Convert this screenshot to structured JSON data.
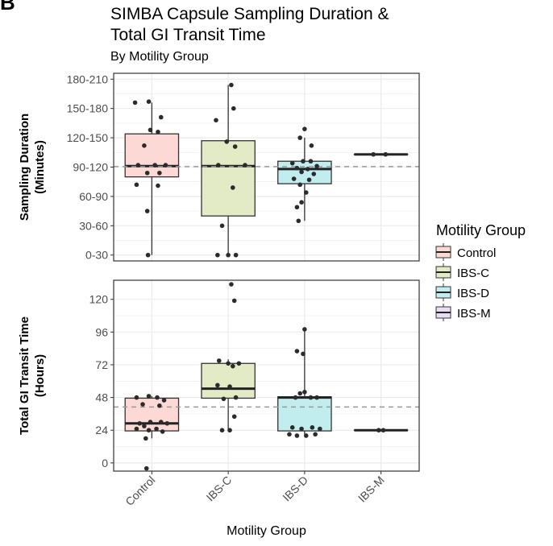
{
  "panel_letter": "B",
  "header": {
    "title_line1": "SIMBA Capsule Sampling Duration &",
    "title_line2": "Total GI Transit Time",
    "subtitle": "By Motility Group"
  },
  "colors": {
    "Control": "#fdd9d5",
    "IBS-C": "#e2ebc6",
    "IBS-D": "#c1edee",
    "IBS-M": "#eadcf6",
    "grid": "#ebebeb",
    "reference_line": "#999999",
    "points": "#2b2b2b"
  },
  "chart_data": [
    {
      "type": "box",
      "panel": "top",
      "ylabel_line1": "Sampling Duration",
      "ylabel_line2": "(Minutes)",
      "categories": [
        "Control",
        "IBS-C",
        "IBS-D",
        "IBS-M"
      ],
      "yticks": [
        0,
        30,
        60,
        90,
        120,
        150,
        180
      ],
      "ytick_labels": [
        "0-30",
        "30-60",
        "60-90",
        "90-120",
        "120-150",
        "150-180",
        "180-210"
      ],
      "ylim": [
        -6,
        186
      ],
      "reference_line": 90.5,
      "boxes": [
        {
          "category": "Control",
          "q1": 80,
          "median": 91,
          "q3": 124,
          "whisker_low": 0,
          "whisker_high": 156
        },
        {
          "category": "IBS-C",
          "q1": 40,
          "median": 91,
          "q3": 117,
          "whisker_low": 0,
          "whisker_high": 174
        },
        {
          "category": "IBS-D",
          "q1": 73,
          "median": 88,
          "q3": 96,
          "whisker_low": 35,
          "whisker_high": 120
        },
        {
          "category": "IBS-M",
          "q1": 103,
          "median": 103,
          "q3": 103,
          "whisker_low": 103,
          "whisker_high": 103
        }
      ],
      "points": [
        {
          "category": "Control",
          "offset": -0.22,
          "y": 156
        },
        {
          "category": "Control",
          "offset": -0.04,
          "y": 157
        },
        {
          "category": "Control",
          "offset": 0.12,
          "y": 141
        },
        {
          "category": "Control",
          "offset": -0.02,
          "y": 128
        },
        {
          "category": "Control",
          "offset": 0.08,
          "y": 126
        },
        {
          "category": "Control",
          "offset": -0.1,
          "y": 112
        },
        {
          "category": "Control",
          "offset": -0.18,
          "y": 92
        },
        {
          "category": "Control",
          "offset": 0.04,
          "y": 92
        },
        {
          "category": "Control",
          "offset": 0.18,
          "y": 92
        },
        {
          "category": "Control",
          "offset": -0.06,
          "y": 84
        },
        {
          "category": "Control",
          "offset": 0.1,
          "y": 84
        },
        {
          "category": "Control",
          "offset": -0.2,
          "y": 72
        },
        {
          "category": "Control",
          "offset": 0.08,
          "y": 71
        },
        {
          "category": "Control",
          "offset": -0.06,
          "y": 45
        },
        {
          "category": "Control",
          "offset": -0.05,
          "y": 0
        },
        {
          "category": "IBS-C",
          "offset": 0.04,
          "y": 174
        },
        {
          "category": "IBS-C",
          "offset": 0.07,
          "y": 150
        },
        {
          "category": "IBS-C",
          "offset": -0.16,
          "y": 138
        },
        {
          "category": "IBS-C",
          "offset": -0.02,
          "y": 116
        },
        {
          "category": "IBS-C",
          "offset": 0.09,
          "y": 111
        },
        {
          "category": "IBS-C",
          "offset": -0.13,
          "y": 92
        },
        {
          "category": "IBS-C",
          "offset": 0.22,
          "y": 92
        },
        {
          "category": "IBS-C",
          "offset": 0.06,
          "y": 69
        },
        {
          "category": "IBS-C",
          "offset": -0.08,
          "y": 30
        },
        {
          "category": "IBS-C",
          "offset": -0.14,
          "y": 0
        },
        {
          "category": "IBS-C",
          "offset": 0.0,
          "y": 0
        },
        {
          "category": "IBS-C",
          "offset": 0.1,
          "y": 0
        },
        {
          "category": "IBS-D",
          "offset": 0.0,
          "y": 129
        },
        {
          "category": "IBS-D",
          "offset": -0.06,
          "y": 120
        },
        {
          "category": "IBS-D",
          "offset": 0.09,
          "y": 112
        },
        {
          "category": "IBS-D",
          "offset": -0.16,
          "y": 94
        },
        {
          "category": "IBS-D",
          "offset": -0.02,
          "y": 96
        },
        {
          "category": "IBS-D",
          "offset": 0.08,
          "y": 96
        },
        {
          "category": "IBS-D",
          "offset": 0.16,
          "y": 91
        },
        {
          "category": "IBS-D",
          "offset": -0.1,
          "y": 89
        },
        {
          "category": "IBS-D",
          "offset": 0.04,
          "y": 88
        },
        {
          "category": "IBS-D",
          "offset": -0.04,
          "y": 85
        },
        {
          "category": "IBS-D",
          "offset": 0.12,
          "y": 83
        },
        {
          "category": "IBS-D",
          "offset": -0.14,
          "y": 78
        },
        {
          "category": "IBS-D",
          "offset": 0.06,
          "y": 77
        },
        {
          "category": "IBS-D",
          "offset": -0.06,
          "y": 72
        },
        {
          "category": "IBS-D",
          "offset": 0.02,
          "y": 64
        },
        {
          "category": "IBS-D",
          "offset": -0.1,
          "y": 49
        },
        {
          "category": "IBS-D",
          "offset": -0.04,
          "y": 54
        },
        {
          "category": "IBS-D",
          "offset": -0.08,
          "y": 35
        },
        {
          "category": "IBS-M",
          "offset": -0.1,
          "y": 103
        },
        {
          "category": "IBS-M",
          "offset": 0.06,
          "y": 103
        }
      ]
    },
    {
      "type": "box",
      "panel": "bottom",
      "ylabel_line1": "Total GI Transit Time",
      "ylabel_line2": "(Hours)",
      "categories": [
        "Control",
        "IBS-C",
        "IBS-D",
        "IBS-M"
      ],
      "yticks": [
        0,
        24,
        48,
        72,
        96,
        120
      ],
      "ytick_labels": [
        "0",
        "24",
        "48",
        "72",
        "96",
        "120"
      ],
      "ylim": [
        -6,
        134
      ],
      "reference_line": 41,
      "boxes": [
        {
          "category": "Control",
          "q1": 23.5,
          "median": 29,
          "q3": 47.5,
          "whisker_low": 18,
          "whisker_high": 49
        },
        {
          "category": "IBS-C",
          "q1": 47.5,
          "median": 54.5,
          "q3": 73,
          "whisker_low": 24,
          "whisker_high": 76
        },
        {
          "category": "IBS-D",
          "q1": 23.5,
          "median": 48,
          "q3": 48.5,
          "whisker_low": 21,
          "whisker_high": 97
        },
        {
          "category": "IBS-M",
          "q1": 24,
          "median": 24,
          "q3": 24,
          "whisker_low": 24,
          "whisker_high": 24
        }
      ],
      "points": [
        {
          "category": "Control",
          "offset": -0.2,
          "y": 48
        },
        {
          "category": "Control",
          "offset": -0.04,
          "y": 49
        },
        {
          "category": "Control",
          "offset": 0.07,
          "y": 48
        },
        {
          "category": "Control",
          "offset": 0.16,
          "y": 46
        },
        {
          "category": "Control",
          "offset": -0.12,
          "y": 43
        },
        {
          "category": "Control",
          "offset": 0.1,
          "y": 42
        },
        {
          "category": "Control",
          "offset": -0.16,
          "y": 29
        },
        {
          "category": "Control",
          "offset": -0.02,
          "y": 30
        },
        {
          "category": "Control",
          "offset": 0.12,
          "y": 30
        },
        {
          "category": "Control",
          "offset": 0.2,
          "y": 29
        },
        {
          "category": "Control",
          "offset": -0.1,
          "y": 27
        },
        {
          "category": "Control",
          "offset": -0.2,
          "y": 25
        },
        {
          "category": "Control",
          "offset": 0.06,
          "y": 25
        },
        {
          "category": "Control",
          "offset": -0.04,
          "y": 24
        },
        {
          "category": "Control",
          "offset": 0.14,
          "y": 23
        },
        {
          "category": "Control",
          "offset": -0.08,
          "y": 18
        },
        {
          "category": "Control",
          "offset": -0.07,
          "y": -4
        },
        {
          "category": "IBS-C",
          "offset": 0.04,
          "y": 131
        },
        {
          "category": "IBS-C",
          "offset": 0.08,
          "y": 119
        },
        {
          "category": "IBS-C",
          "offset": -0.12,
          "y": 75
        },
        {
          "category": "IBS-C",
          "offset": 0.0,
          "y": 73
        },
        {
          "category": "IBS-C",
          "offset": 0.14,
          "y": 73
        },
        {
          "category": "IBS-C",
          "offset": 0.06,
          "y": 71
        },
        {
          "category": "IBS-C",
          "offset": -0.14,
          "y": 57
        },
        {
          "category": "IBS-C",
          "offset": 0.02,
          "y": 56
        },
        {
          "category": "IBS-C",
          "offset": 0.1,
          "y": 48
        },
        {
          "category": "IBS-C",
          "offset": -0.06,
          "y": 47
        },
        {
          "category": "IBS-C",
          "offset": 0.08,
          "y": 34
        },
        {
          "category": "IBS-C",
          "offset": -0.08,
          "y": 24
        },
        {
          "category": "IBS-C",
          "offset": 0.02,
          "y": 24
        },
        {
          "category": "IBS-D",
          "offset": 0.0,
          "y": 98
        },
        {
          "category": "IBS-D",
          "offset": -0.1,
          "y": 82
        },
        {
          "category": "IBS-D",
          "offset": -0.02,
          "y": 80
        },
        {
          "category": "IBS-D",
          "offset": -0.06,
          "y": 51
        },
        {
          "category": "IBS-D",
          "offset": 0.0,
          "y": 52
        },
        {
          "category": "IBS-D",
          "offset": 0.08,
          "y": 48
        },
        {
          "category": "IBS-D",
          "offset": 0.16,
          "y": 48
        },
        {
          "category": "IBS-D",
          "offset": -0.12,
          "y": 48
        },
        {
          "category": "IBS-D",
          "offset": -0.16,
          "y": 26
        },
        {
          "category": "IBS-D",
          "offset": -0.04,
          "y": 25
        },
        {
          "category": "IBS-D",
          "offset": 0.1,
          "y": 26
        },
        {
          "category": "IBS-D",
          "offset": 0.2,
          "y": 25
        },
        {
          "category": "IBS-D",
          "offset": -0.2,
          "y": 21
        },
        {
          "category": "IBS-D",
          "offset": -0.1,
          "y": 20
        },
        {
          "category": "IBS-D",
          "offset": 0.02,
          "y": 20
        },
        {
          "category": "IBS-D",
          "offset": 0.14,
          "y": 21
        },
        {
          "category": "IBS-M",
          "offset": -0.03,
          "y": 24
        },
        {
          "category": "IBS-M",
          "offset": 0.03,
          "y": 24
        }
      ]
    }
  ],
  "x_axis": {
    "title": "Motility Group",
    "tick_labels": [
      "Control",
      "IBS-C",
      "IBS-D",
      "IBS-M"
    ]
  },
  "legend": {
    "title": "Motility Group",
    "entries": [
      "Control",
      "IBS-C",
      "IBS-D",
      "IBS-M"
    ],
    "placement": "right"
  }
}
